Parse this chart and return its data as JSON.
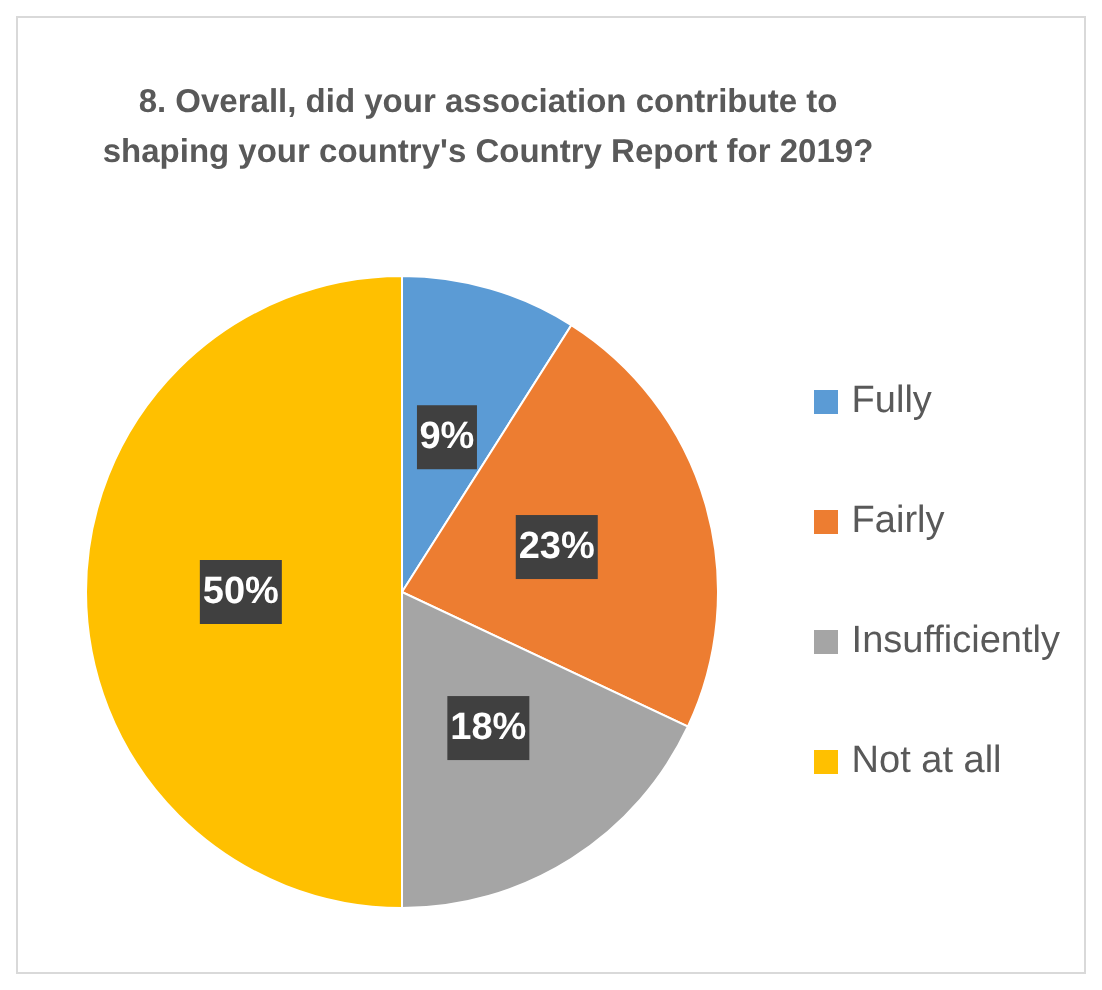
{
  "chart_data": {
    "type": "pie",
    "title": "8. Overall, did your association contribute to shaping your country's Country Report for 2019?",
    "categories": [
      "Fully",
      "Fairly",
      "Insufficiently",
      "Not at all"
    ],
    "values": [
      9,
      23,
      18,
      50
    ],
    "value_labels": [
      "9%",
      "23%",
      "18%",
      "50%"
    ],
    "colors": [
      "#5b9bd5",
      "#ed7d31",
      "#a5a5a5",
      "#ffc000"
    ],
    "legend": "right"
  }
}
